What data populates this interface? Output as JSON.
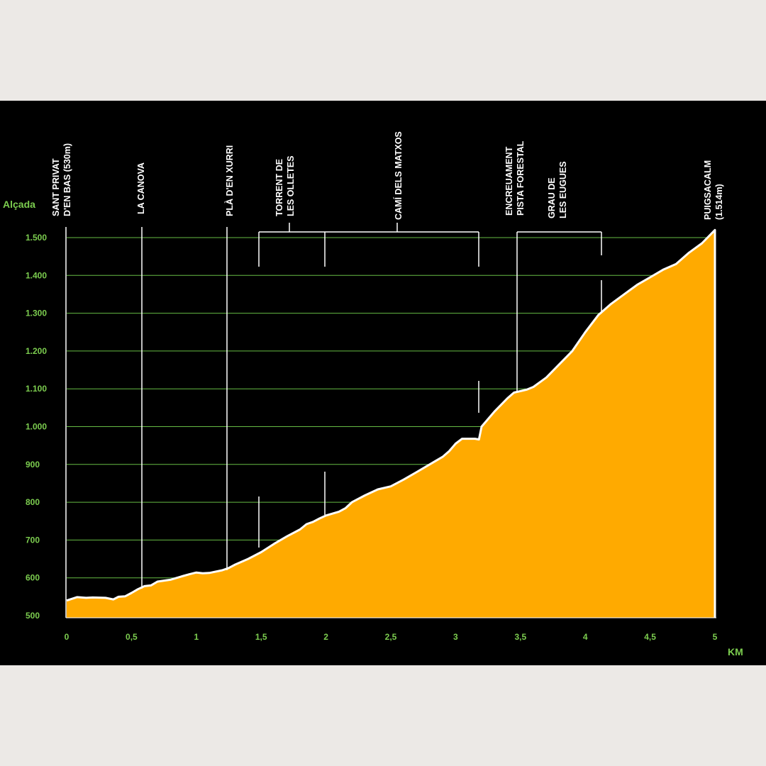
{
  "colors": {
    "page_background": "#ece9e6",
    "chart_background": "#000000",
    "profile_fill": "#ffaa00",
    "profile_outline": "#ffffff",
    "gridline": "#66bb44",
    "axis_text": "#7ccd4f",
    "marker_line": "#ffffff"
  },
  "chart_data": {
    "type": "area",
    "xlabel": "KM",
    "ylabel": "Alçada",
    "xlim": [
      0,
      5
    ],
    "ylim": [
      500,
      1514
    ],
    "grid": "horizontal",
    "x_ticks": [
      {
        "value": 0,
        "label": "0"
      },
      {
        "value": 0.5,
        "label": "0,5"
      },
      {
        "value": 1,
        "label": "1"
      },
      {
        "value": 1.5,
        "label": "1,5"
      },
      {
        "value": 2,
        "label": "2"
      },
      {
        "value": 2.5,
        "label": "2,5"
      },
      {
        "value": 3,
        "label": "3"
      },
      {
        "value": 3.5,
        "label": "3,5"
      },
      {
        "value": 4,
        "label": "4"
      },
      {
        "value": 4.5,
        "label": "4,5"
      },
      {
        "value": 5,
        "label": "5"
      }
    ],
    "y_ticks": [
      {
        "value": 500,
        "label": "500"
      },
      {
        "value": 600,
        "label": "600"
      },
      {
        "value": 700,
        "label": "700"
      },
      {
        "value": 800,
        "label": "800"
      },
      {
        "value": 900,
        "label": "900"
      },
      {
        "value": 1000,
        "label": "1.000"
      },
      {
        "value": 1100,
        "label": "1.100"
      },
      {
        "value": 1200,
        "label": "1.200"
      },
      {
        "value": 1300,
        "label": "1.300"
      },
      {
        "value": 1400,
        "label": "1.400"
      },
      {
        "value": 1500,
        "label": "1.500"
      }
    ],
    "profile": [
      [
        0,
        540
      ],
      [
        0.08,
        549
      ],
      [
        0.15,
        547
      ],
      [
        0.2,
        548
      ],
      [
        0.3,
        547
      ],
      [
        0.36,
        543
      ],
      [
        0.4,
        550
      ],
      [
        0.45,
        551
      ],
      [
        0.5,
        560
      ],
      [
        0.55,
        570
      ],
      [
        0.6,
        578
      ],
      [
        0.65,
        580
      ],
      [
        0.7,
        590
      ],
      [
        0.8,
        595
      ],
      [
        0.85,
        600
      ],
      [
        0.9,
        605
      ],
      [
        0.95,
        610
      ],
      [
        1.0,
        614
      ],
      [
        1.05,
        612
      ],
      [
        1.1,
        613
      ],
      [
        1.2,
        620
      ],
      [
        1.25,
        626
      ],
      [
        1.3,
        635
      ],
      [
        1.4,
        650
      ],
      [
        1.5,
        668
      ],
      [
        1.6,
        690
      ],
      [
        1.7,
        710
      ],
      [
        1.8,
        728
      ],
      [
        1.85,
        742
      ],
      [
        1.9,
        748
      ],
      [
        1.95,
        757
      ],
      [
        2.0,
        765
      ],
      [
        2.1,
        775
      ],
      [
        2.15,
        784
      ],
      [
        2.2,
        800
      ],
      [
        2.3,
        818
      ],
      [
        2.4,
        834
      ],
      [
        2.5,
        842
      ],
      [
        2.6,
        860
      ],
      [
        2.7,
        880
      ],
      [
        2.8,
        900
      ],
      [
        2.9,
        920
      ],
      [
        2.95,
        935
      ],
      [
        3.0,
        955
      ],
      [
        3.05,
        968
      ],
      [
        3.15,
        968
      ],
      [
        3.18,
        966
      ],
      [
        3.2,
        1000
      ],
      [
        3.3,
        1040
      ],
      [
        3.4,
        1075
      ],
      [
        3.45,
        1090
      ],
      [
        3.55,
        1098
      ],
      [
        3.6,
        1105
      ],
      [
        3.7,
        1130
      ],
      [
        3.8,
        1165
      ],
      [
        3.9,
        1200
      ],
      [
        4.0,
        1250
      ],
      [
        4.1,
        1295
      ],
      [
        4.2,
        1325
      ],
      [
        4.3,
        1350
      ],
      [
        4.4,
        1375
      ],
      [
        4.5,
        1395
      ],
      [
        4.6,
        1415
      ],
      [
        4.7,
        1430
      ],
      [
        4.8,
        1460
      ],
      [
        4.9,
        1485
      ],
      [
        5.0,
        1520
      ]
    ],
    "waypoints": [
      {
        "x": 0.0,
        "lines": [
          "SANT PRIVAT",
          "D'EN BAS (530m)"
        ]
      },
      {
        "x": 0.585,
        "lines": [
          "LA CANOVA"
        ]
      },
      {
        "x": 1.245,
        "lines": [
          "PLÀ D'EN XURRI"
        ]
      },
      {
        "x": 1.74,
        "lines": [
          "TORRENT DE",
          "LES OLLETES"
        ]
      },
      {
        "x": 2.5,
        "lines": [
          "CAMÍ DELS MATXOS"
        ]
      },
      {
        "x": 3.44,
        "lines": [
          "ENCREUAMENT",
          "PISTA FORESTAL"
        ]
      },
      {
        "x": 3.82,
        "lines": [
          "GRAU DE",
          "LES EUGUES"
        ]
      },
      {
        "x": 5.0,
        "lines": [
          "PUIGSACALM",
          "(1.514m)"
        ]
      }
    ]
  }
}
